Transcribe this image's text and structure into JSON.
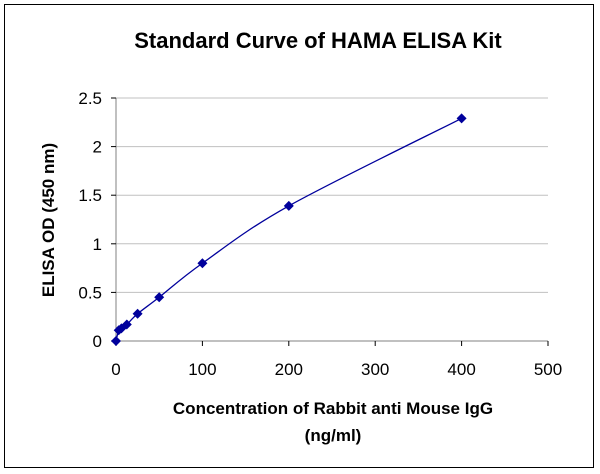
{
  "chart_data": {
    "type": "scatter",
    "title": "Standard Curve of HAMA ELISA Kit",
    "xlabel": "Concentration of Rabbit anti Mouse IgG",
    "xlabel_unit": "(ng/ml)",
    "ylabel": "ELISA OD (450 nm)",
    "xlim": [
      0,
      500
    ],
    "ylim": [
      0,
      2.5
    ],
    "xticks": [
      "0",
      "100",
      "200",
      "300",
      "400",
      "500"
    ],
    "yticks": [
      "0",
      "0.5",
      "1",
      "1.5",
      "2",
      "2.5"
    ],
    "grid": "horizontal",
    "legend": "none",
    "marker": "diamond",
    "line": "smooth",
    "color": "#00009c",
    "x": [
      0,
      3.125,
      6.25,
      12.5,
      25,
      50,
      100,
      200,
      400
    ],
    "y": [
      0,
      0.11,
      0.13,
      0.17,
      0.28,
      0.45,
      0.8,
      1.39,
      2.29
    ]
  }
}
